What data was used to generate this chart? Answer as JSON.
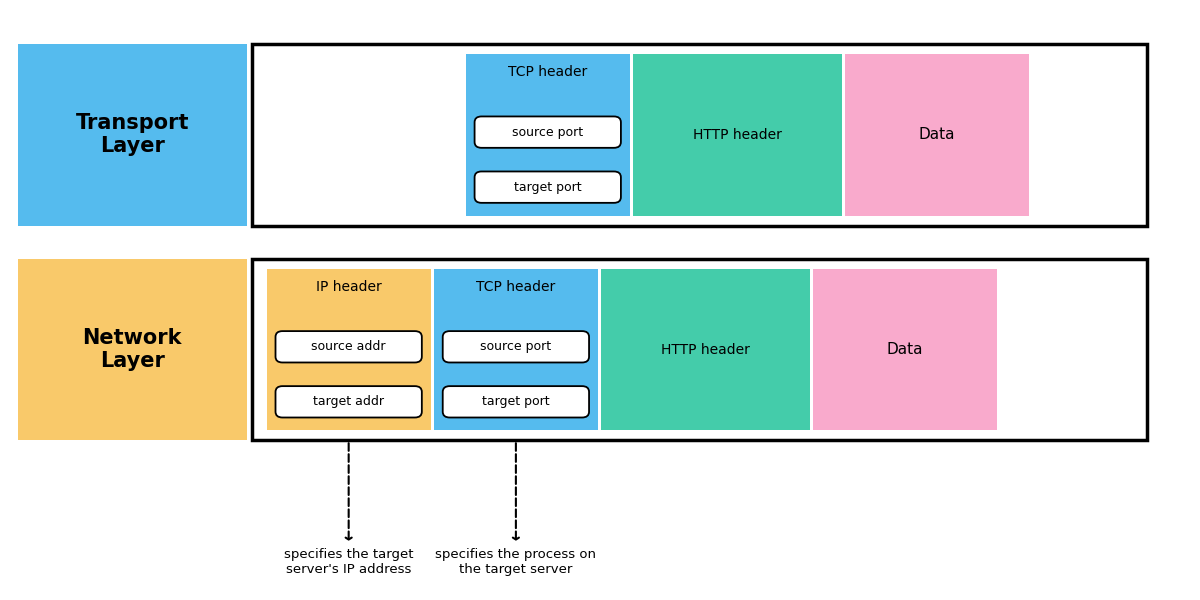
{
  "bg_color": "#ffffff",
  "transport_layer_label": "Transport\nLayer",
  "network_layer_label": "Network\nLayer",
  "color_blue_light": "#55BBEE",
  "color_yellow_light": "#F9C96A",
  "color_cyan": "#44CCAA",
  "color_pink": "#F9AACC",
  "color_white": "#FFFFFF",
  "color_black": "#000000",
  "tcp_header_label": "TCP header",
  "http_header_label": "HTTP header",
  "data_label": "Data",
  "ip_header_label": "IP header",
  "source_port_label": "source port",
  "target_port_label": "target port",
  "source_addr_label": "source addr",
  "target_addr_label": "target addr",
  "arrow1_text": "specifies the target\nserver's IP address",
  "arrow2_text": "specifies the process on\nthe target server"
}
